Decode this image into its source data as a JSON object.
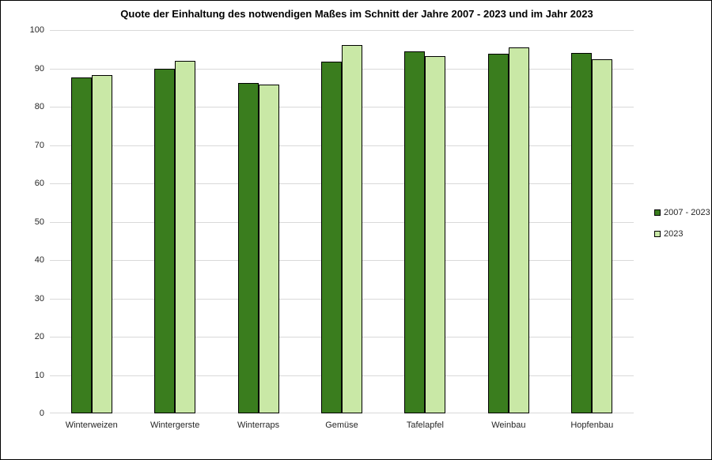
{
  "title": "Quote der Einhaltung des notwendigen Maßes im Schnitt der Jahre 2007 - 2023 und im Jahr 2023",
  "chart_data": {
    "type": "bar",
    "title": "Quote der Einhaltung des notwendigen Maßes im Schnitt der Jahre 2007 - 2023 und im Jahr 2023",
    "categories": [
      "Winterweizen",
      "Wintergerste",
      "Winterraps",
      "Gemüse",
      "Tafelapfel",
      "Weinbau",
      "Hopfenbau"
    ],
    "series": [
      {
        "name": "2007 - 2023",
        "color": "#3a7d1e",
        "values": [
          87.7,
          89.9,
          86.2,
          91.7,
          94.4,
          93.9,
          94.1
        ]
      },
      {
        "name": "2023",
        "color": "#c9e8a6",
        "values": [
          88.2,
          92.0,
          85.7,
          96.0,
          93.1,
          95.4,
          92.3
        ]
      }
    ],
    "xlabel": "",
    "ylabel": "",
    "ylim": [
      0,
      100
    ],
    "yticks": [
      0,
      10,
      20,
      30,
      40,
      50,
      60,
      70,
      80,
      90,
      100
    ],
    "grid": true,
    "gridline_color": "#d9d9d9",
    "bar_border_color": "#000000",
    "legend_position": "right",
    "legend_items": [
      "2007 - 2023",
      "2023"
    ]
  }
}
